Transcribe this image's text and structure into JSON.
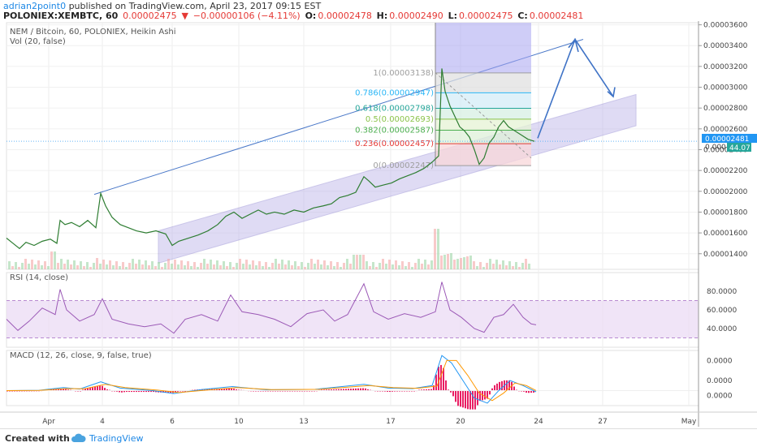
{
  "header": {
    "author": "adrian2point0",
    "published": "published on TradingView.com, April 23, 2017 09:15 EST",
    "symbol": "POLONIEX:XEMBTC, 60",
    "last": "0.00002475",
    "change": "−0.00000106 (−4.11%)",
    "open_label": "O:",
    "open": "0.00002478",
    "high_label": "H:",
    "high": "0.00002490",
    "low_label": "L:",
    "low": "0.00002475",
    "close_label": "C:",
    "close": "0.00002481"
  },
  "price_pane": {
    "title": "NEM / Bitcoin, 60, POLONIEX, Heikin Ashi",
    "vol_label": "Vol (20, false)",
    "last_price_tag": "0.00002481",
    "vol_tag": "44.07",
    "vol_tag_prefix": "0.000"
  },
  "rsi_pane": {
    "title": "RSI (14, close)"
  },
  "macd_pane": {
    "title": "MACD (12, 26, close, 9, false, true)"
  },
  "fib_levels": [
    {
      "label": "1(0.00003138)",
      "price": 3.138e-05
    },
    {
      "label": "0.786(0.00002947)",
      "price": 2.947e-05
    },
    {
      "label": "0.618(0.00002798)",
      "price": 2.798e-05
    },
    {
      "label": "0.5(0.00002693)",
      "price": 2.693e-05
    },
    {
      "label": "0.382(0.00002587)",
      "price": 2.587e-05
    },
    {
      "label": "0.236(0.00002457)",
      "price": 2.457e-05
    },
    {
      "label": "0(0.00002247)",
      "price": 2.247e-05
    }
  ],
  "footer": {
    "created_with": "Created with",
    "brand": "TradingView"
  },
  "colors": {
    "up": "#8fd19e",
    "down": "#e53935",
    "channel": "#6a5acd",
    "rsi": "#9b59b6",
    "macd": "#2196f3",
    "signal": "#ff9800",
    "hist_pos": "#e91e63"
  },
  "chart_data": [
    {
      "type": "line",
      "title": "NEM / Bitcoin, 60, POLONIEX, Heikin Ashi",
      "x_ticks": [
        "Apr",
        "4",
        "6",
        "10",
        "13",
        "17",
        "20",
        "24",
        "27",
        "May"
      ],
      "y_ticks": [
        "0.00003600",
        "0.00003400",
        "0.00003200",
        "0.00003000",
        "0.00002800",
        "0.00002600",
        "0.00002400",
        "0.00002200",
        "0.00002000",
        "0.00001800",
        "0.00001600",
        "0.00001400"
      ],
      "ylim": [
        1.25e-05,
        3.62e-05
      ],
      "series": [
        {
          "name": "XEMBTC",
          "points": [
            [
              0,
              1.55e-05
            ],
            [
              8,
              1.5e-05
            ],
            [
              16,
              1.45e-05
            ],
            [
              24,
              1.51e-05
            ],
            [
              34,
              1.48e-05
            ],
            [
              44,
              1.52e-05
            ],
            [
              54,
              1.54e-05
            ],
            [
              62,
              1.5e-05
            ],
            [
              66,
              1.72e-05
            ],
            [
              72,
              1.68e-05
            ],
            [
              80,
              1.7e-05
            ],
            [
              90,
              1.66e-05
            ],
            [
              100,
              1.72e-05
            ],
            [
              110,
              1.65e-05
            ],
            [
              116,
              1.98e-05
            ],
            [
              122,
              1.86e-05
            ],
            [
              130,
              1.75e-05
            ],
            [
              140,
              1.68e-05
            ],
            [
              150,
              1.65e-05
            ],
            [
              160,
              1.62e-05
            ],
            [
              172,
              1.6e-05
            ],
            [
              184,
              1.62e-05
            ],
            [
              196,
              1.59e-05
            ],
            [
              204,
              1.48e-05
            ],
            [
              212,
              1.52e-05
            ],
            [
              224,
              1.55e-05
            ],
            [
              236,
              1.58e-05
            ],
            [
              248,
              1.62e-05
            ],
            [
              260,
              1.68e-05
            ],
            [
              270,
              1.76e-05
            ],
            [
              280,
              1.8e-05
            ],
            [
              290,
              1.74e-05
            ],
            [
              300,
              1.78e-05
            ],
            [
              310,
              1.82e-05
            ],
            [
              320,
              1.78e-05
            ],
            [
              330,
              1.8e-05
            ],
            [
              342,
              1.78e-05
            ],
            [
              354,
              1.82e-05
            ],
            [
              366,
              1.8e-05
            ],
            [
              378,
              1.84e-05
            ],
            [
              390,
              1.86e-05
            ],
            [
              400,
              1.88e-05
            ],
            [
              410,
              1.94e-05
            ],
            [
              420,
              1.96e-05
            ],
            [
              430,
              1.99e-05
            ],
            [
              440,
              2.14e-05
            ],
            [
              446,
              2.1e-05
            ],
            [
              454,
              2.04e-05
            ],
            [
              464,
              2.06e-05
            ],
            [
              474,
              2.08e-05
            ],
            [
              484,
              2.12e-05
            ],
            [
              494,
              2.15e-05
            ],
            [
              504,
              2.18e-05
            ],
            [
              514,
              2.22e-05
            ],
            [
              524,
              2.28e-05
            ],
            [
              532,
              2.34e-05
            ],
            [
              536,
              3.18e-05
            ],
            [
              540,
              2.96e-05
            ],
            [
              546,
              2.82e-05
            ],
            [
              552,
              2.72e-05
            ],
            [
              558,
              2.62e-05
            ],
            [
              564,
              2.58e-05
            ],
            [
              570,
              2.52e-05
            ],
            [
              576,
              2.4e-05
            ],
            [
              582,
              2.26e-05
            ],
            [
              588,
              2.32e-05
            ],
            [
              594,
              2.46e-05
            ],
            [
              600,
              2.52e-05
            ],
            [
              606,
              2.62e-05
            ],
            [
              612,
              2.68e-05
            ],
            [
              618,
              2.62e-05
            ],
            [
              626,
              2.58e-05
            ],
            [
              634,
              2.54e-05
            ],
            [
              642,
              2.5e-05
            ],
            [
              650,
              2.48e-05
            ]
          ]
        }
      ]
    },
    {
      "type": "line",
      "title": "RSI (14, close)",
      "y_ticks": [
        "80.0000",
        "60.0000",
        "40.0000"
      ],
      "ylim": [
        20,
        100
      ],
      "series": [
        {
          "name": "RSI",
          "points": [
            [
              0,
              50
            ],
            [
              14,
              38
            ],
            [
              28,
              48
            ],
            [
              44,
              62
            ],
            [
              60,
              55
            ],
            [
              66,
              82
            ],
            [
              74,
              60
            ],
            [
              90,
              48
            ],
            [
              108,
              55
            ],
            [
              118,
              72
            ],
            [
              130,
              50
            ],
            [
              150,
              45
            ],
            [
              170,
              42
            ],
            [
              190,
              45
            ],
            [
              206,
              35
            ],
            [
              220,
              50
            ],
            [
              240,
              55
            ],
            [
              260,
              48
            ],
            [
              276,
              76
            ],
            [
              290,
              58
            ],
            [
              310,
              55
            ],
            [
              330,
              50
            ],
            [
              350,
              42
            ],
            [
              370,
              56
            ],
            [
              390,
              60
            ],
            [
              404,
              48
            ],
            [
              420,
              55
            ],
            [
              440,
              88
            ],
            [
              452,
              58
            ],
            [
              470,
              50
            ],
            [
              490,
              56
            ],
            [
              510,
              52
            ],
            [
              528,
              58
            ],
            [
              536,
              90
            ],
            [
              546,
              60
            ],
            [
              560,
              52
            ],
            [
              576,
              40
            ],
            [
              588,
              36
            ],
            [
              600,
              52
            ],
            [
              612,
              55
            ],
            [
              624,
              66
            ],
            [
              636,
              52
            ],
            [
              646,
              45
            ],
            [
              652,
              44
            ]
          ]
        }
      ]
    },
    {
      "type": "line",
      "title": "MACD (12, 26, close, 9, false, true)",
      "y_ticks": [
        "0.0000",
        "0.0000",
        "0.0000"
      ],
      "series": [
        {
          "name": "MACD",
          "points": [
            [
              0,
              0
            ],
            [
              40,
              0.1
            ],
            [
              70,
              1.2
            ],
            [
              90,
              0.6
            ],
            [
              116,
              3.5
            ],
            [
              140,
              1.0
            ],
            [
              180,
              0
            ],
            [
              206,
              -1.2
            ],
            [
              240,
              0.4
            ],
            [
              278,
              1.6
            ],
            [
              320,
              0.3
            ],
            [
              380,
              0.5
            ],
            [
              440,
              2.5
            ],
            [
              470,
              1.0
            ],
            [
              500,
              0.8
            ],
            [
              524,
              2.0
            ],
            [
              536,
              14
            ],
            [
              548,
              11
            ],
            [
              562,
              4
            ],
            [
              576,
              -3
            ],
            [
              592,
              -5
            ],
            [
              606,
              0
            ],
            [
              620,
              4
            ],
            [
              636,
              2
            ],
            [
              652,
              -0.5
            ]
          ]
        },
        {
          "name": "Signal",
          "points": [
            [
              0,
              0
            ],
            [
              40,
              0.05
            ],
            [
              74,
              0.8
            ],
            [
              96,
              0.7
            ],
            [
              122,
              2.5
            ],
            [
              146,
              1.2
            ],
            [
              186,
              0.2
            ],
            [
              212,
              -0.8
            ],
            [
              246,
              0.2
            ],
            [
              284,
              1.2
            ],
            [
              326,
              0.4
            ],
            [
              386,
              0.5
            ],
            [
              446,
              2.0
            ],
            [
              476,
              1.2
            ],
            [
              506,
              0.9
            ],
            [
              530,
              1.8
            ],
            [
              542,
              12
            ],
            [
              554,
              12
            ],
            [
              568,
              6
            ],
            [
              582,
              -1
            ],
            [
              598,
              -4
            ],
            [
              612,
              -1
            ],
            [
              626,
              3
            ],
            [
              640,
              2
            ],
            [
              652,
              0
            ]
          ]
        }
      ]
    }
  ]
}
